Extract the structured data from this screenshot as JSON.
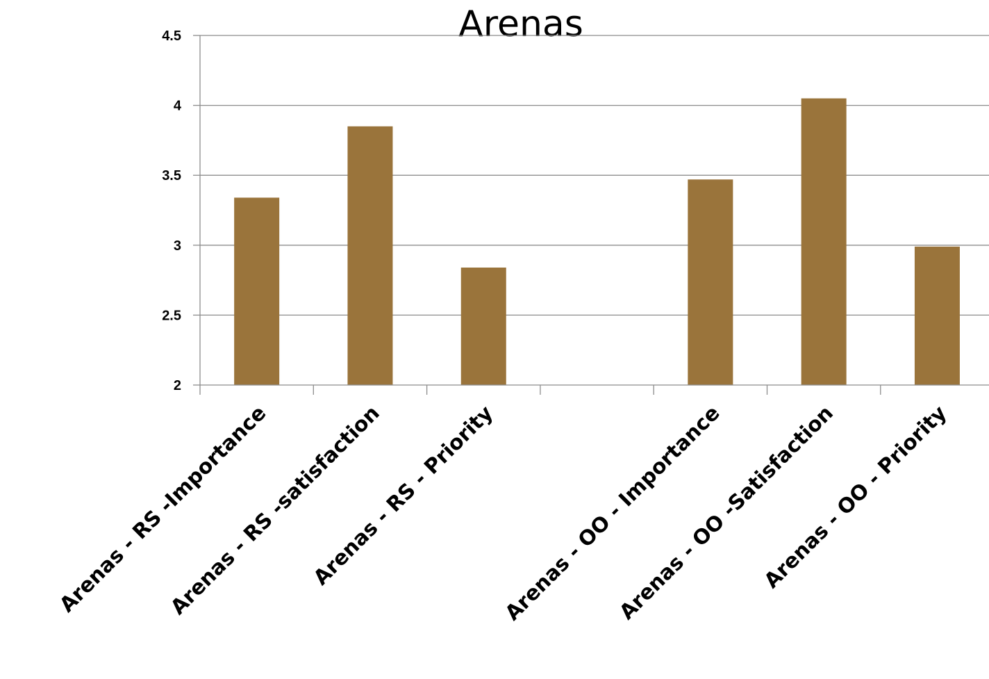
{
  "chart_data": {
    "type": "bar",
    "title": "Arenas",
    "xlabel": "",
    "ylabel": "",
    "ylim": [
      2,
      4.5
    ],
    "y_ticks": [
      "2",
      "2.5",
      "3",
      "3.5",
      "4",
      "4.5"
    ],
    "categories": [
      "Arenas - RS -Importance",
      "Arenas - RS -satisfaction",
      "Arenas - RS - Priority",
      "",
      "Arenas - OO - Importance",
      "Arenas - OO -Satisfaction",
      "Arenas - OO -  Priority"
    ],
    "values": [
      3.34,
      3.85,
      2.84,
      null,
      3.47,
      4.05,
      2.99
    ],
    "grid": true,
    "legend": "none",
    "colors": {
      "bar": "#9a743b",
      "grid": "#8c8c8c",
      "axis": "#8c8c8c",
      "text": "#000000"
    }
  }
}
